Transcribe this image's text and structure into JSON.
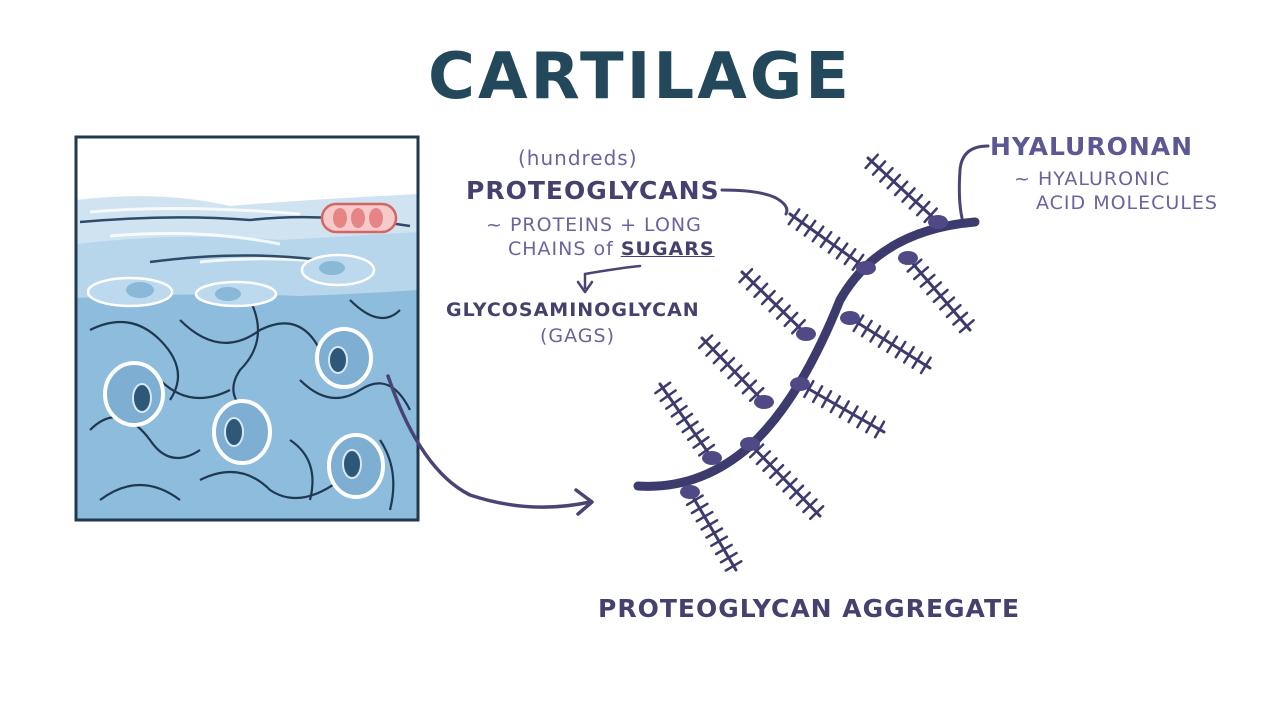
{
  "title": "CARTILAGE",
  "proteoglycans": {
    "qualifier": "(hundreds)",
    "name": "PROTEOGLYCANS",
    "definition_line1": "~ PROTEINS + LONG",
    "definition_line2_prefix": "CHAINS of ",
    "definition_line2_emphasis": "SUGARS"
  },
  "gags": {
    "name": "GLYCOSAMINOGLYCAN",
    "abbreviation": "(GAGS)"
  },
  "hyaluronan": {
    "name": "HYALURONAN",
    "definition_line1": "~ HYALURONIC",
    "definition_line2": "ACID MOLECULES"
  },
  "aggregate_label": "PROTEOGLYCAN AGGREGATE",
  "colors": {
    "title": "#23485c",
    "label_dark": "#45416f",
    "label_light": "#6b639e",
    "aggregate_stroke": "#3d3a6e",
    "tissue_matrix": "#7fb1d3",
    "tissue_perichondrium": "#a9cde6",
    "red_blood_cell": "#e58585"
  }
}
